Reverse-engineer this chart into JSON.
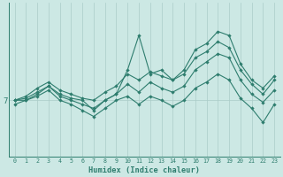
{
  "xlabel": "Humidex (Indice chaleur)",
  "bg_color": "#cce8e4",
  "line_color": "#2e7d6e",
  "grid_color": "#aaccc8",
  "ytick_label": "7",
  "ytick_value": 7,
  "xlim_min": -0.5,
  "xlim_max": 23.5,
  "ylim_min": 4.2,
  "ylim_max": 11.8,
  "figw": 3.2,
  "figh": 2.0,
  "dpi": 100,
  "lines": [
    [
      6.8,
      7.0,
      7.3,
      7.7,
      7.3,
      7.1,
      7.0,
      6.5,
      7.0,
      7.3,
      8.5,
      10.2,
      8.3,
      8.5,
      8.0,
      8.5,
      9.5,
      9.8,
      10.4,
      10.2,
      8.8,
      8.0,
      7.6,
      8.2
    ],
    [
      7.0,
      7.2,
      7.6,
      7.9,
      7.5,
      7.3,
      7.1,
      7.0,
      7.4,
      7.7,
      8.3,
      8.0,
      8.4,
      8.2,
      8.0,
      8.3,
      9.1,
      9.4,
      9.9,
      9.6,
      8.5,
      7.8,
      7.3,
      8.0
    ],
    [
      7.0,
      7.1,
      7.4,
      7.7,
      7.2,
      7.0,
      6.8,
      6.6,
      7.0,
      7.3,
      7.8,
      7.4,
      7.9,
      7.6,
      7.4,
      7.7,
      8.5,
      8.9,
      9.3,
      9.1,
      8.0,
      7.3,
      6.9,
      7.5
    ],
    [
      7.0,
      7.0,
      7.2,
      7.5,
      7.0,
      6.8,
      6.5,
      6.2,
      6.6,
      7.0,
      7.2,
      6.8,
      7.2,
      7.0,
      6.7,
      7.0,
      7.6,
      7.9,
      8.3,
      8.0,
      7.1,
      6.6,
      5.9,
      6.8
    ]
  ]
}
